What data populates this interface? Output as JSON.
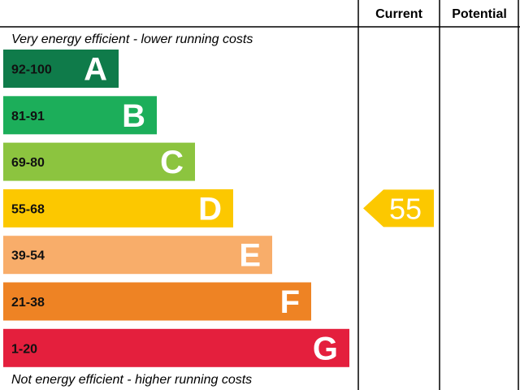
{
  "chart_data": {
    "type": "bar",
    "headers": {
      "current": "Current",
      "potential": "Potential"
    },
    "top_caption": "Very energy efficient - lower running costs",
    "bottom_caption": "Not energy efficient - higher running costs",
    "bands": [
      {
        "range": "92-100",
        "letter": "A",
        "color": "#0f7b4a"
      },
      {
        "range": "81-91",
        "letter": "B",
        "color": "#1cae5a"
      },
      {
        "range": "69-80",
        "letter": "C",
        "color": "#8cc43f"
      },
      {
        "range": "55-68",
        "letter": "D",
        "color": "#fcc800"
      },
      {
        "range": "39-54",
        "letter": "E",
        "color": "#f8ad6a"
      },
      {
        "range": "21-38",
        "letter": "F",
        "color": "#ee8324"
      },
      {
        "range": "1-20",
        "letter": "G",
        "color": "#e41f3d"
      }
    ],
    "current": {
      "value": 55,
      "label": "55",
      "band": "D",
      "color": "#fcc800"
    },
    "potential": null
  }
}
